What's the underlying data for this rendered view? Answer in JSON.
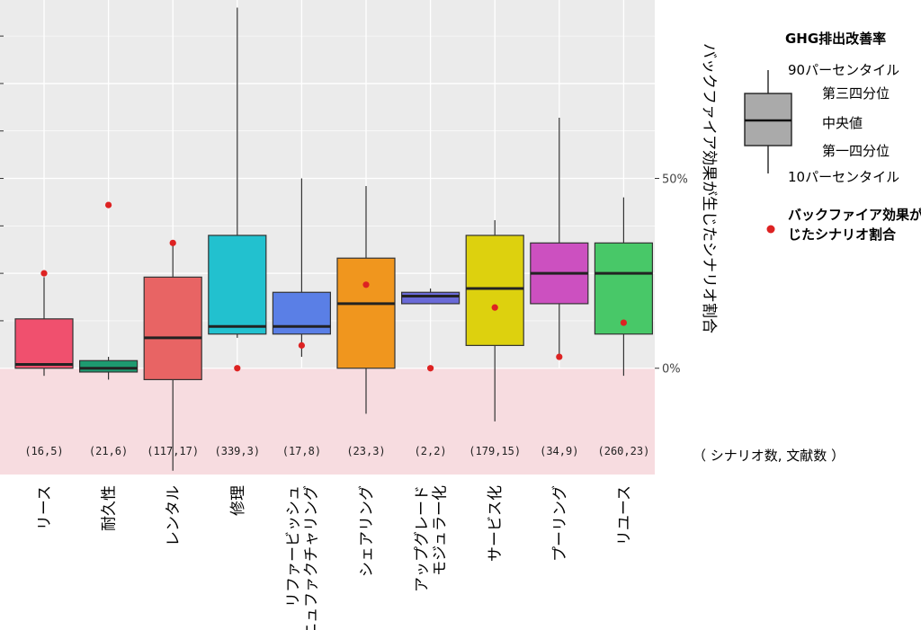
{
  "chart_data": {
    "type": "boxplot",
    "title": "",
    "ylabel": "バックファイア効果が生じたシナリオ割合",
    "ylim": [
      -0.28,
      0.97
    ],
    "y_ticks": [
      {
        "value": 0.5,
        "label": "50%"
      },
      {
        "value": 0.0,
        "label": "0%"
      }
    ],
    "negative_region": {
      "from": -0.28,
      "to": 0.0,
      "color": "#f7dce0"
    },
    "count_axis_label": "（ シナリオ数, 文献数 ）",
    "categories": [
      {
        "name": "リース",
        "lines": [
          "リース"
        ],
        "color": "#f0506e",
        "p10": -0.02,
        "q1": 0.0,
        "median": 0.01,
        "q3": 0.13,
        "p90": 0.24,
        "scenario_share": 0.25,
        "count_label": "(16,5)"
      },
      {
        "name": "耐久性",
        "lines": [
          "耐久性"
        ],
        "color": "#1d9a70",
        "p10": -0.03,
        "q1": -0.01,
        "median": 0.0,
        "q3": 0.02,
        "p90": 0.03,
        "scenario_share": 0.43,
        "count_label": "(21,6)"
      },
      {
        "name": "レンタル",
        "lines": [
          "レンタル"
        ],
        "color": "#e86464",
        "p10": -0.27,
        "q1": -0.03,
        "median": 0.08,
        "q3": 0.24,
        "p90": 0.33,
        "scenario_share": 0.33,
        "count_label": "(117,17)"
      },
      {
        "name": "修理",
        "lines": [
          "修理"
        ],
        "color": "#22c1cf",
        "p10": 0.08,
        "q1": 0.09,
        "median": 0.11,
        "q3": 0.35,
        "p90": 0.95,
        "scenario_share": 0.0,
        "count_label": "(339,3)"
      },
      {
        "name": "リファービッシュ マニュファクチャリング",
        "lines": [
          "リファービッシュ",
          "マニュファクチャリング"
        ],
        "color": "#5a7fe6",
        "p10": 0.03,
        "q1": 0.09,
        "median": 0.11,
        "q3": 0.2,
        "p90": 0.5,
        "scenario_share": 0.06,
        "count_label": "(17,8)"
      },
      {
        "name": "シェアリング",
        "lines": [
          "シェアリング"
        ],
        "color": "#f0961e",
        "p10": -0.12,
        "q1": 0.0,
        "median": 0.17,
        "q3": 0.29,
        "p90": 0.48,
        "scenario_share": 0.22,
        "count_label": "(23,3)"
      },
      {
        "name": "アップグレード モジュラー化",
        "lines": [
          "アップグレード",
          "モジュラー化"
        ],
        "color": "#6a6ad8",
        "p10": 0.17,
        "q1": 0.17,
        "median": 0.19,
        "q3": 0.2,
        "p90": 0.21,
        "scenario_share": 0.0,
        "count_label": "(2,2)"
      },
      {
        "name": "サービス化",
        "lines": [
          "サービス化"
        ],
        "color": "#ddd10e",
        "p10": -0.14,
        "q1": 0.06,
        "median": 0.21,
        "q3": 0.35,
        "p90": 0.39,
        "scenario_share": 0.16,
        "count_label": "(179,15)"
      },
      {
        "name": "プーリング",
        "lines": [
          "プーリング"
        ],
        "color": "#cc50c0",
        "p10": 0.03,
        "q1": 0.17,
        "median": 0.25,
        "q3": 0.33,
        "p90": 0.66,
        "scenario_share": 0.03,
        "count_label": "(34,9)"
      },
      {
        "name": "リユース",
        "lines": [
          "リユース"
        ],
        "color": "#48c868",
        "p10": -0.02,
        "q1": 0.09,
        "median": 0.25,
        "q3": 0.33,
        "p90": 0.45,
        "scenario_share": 0.12,
        "count_label": "(260,23)"
      }
    ],
    "legend": {
      "title": "GHG排出改善率",
      "box_color": "#aaaaaa",
      "labels": [
        "90パーセンタイル",
        "第三四分位",
        "中央値",
        "第一四分位",
        "10パーセンタイル"
      ],
      "point_label_lines": [
        "バックファイア効果が生",
        "じたシナリオ割合"
      ],
      "point_color": "#dd2222"
    }
  }
}
